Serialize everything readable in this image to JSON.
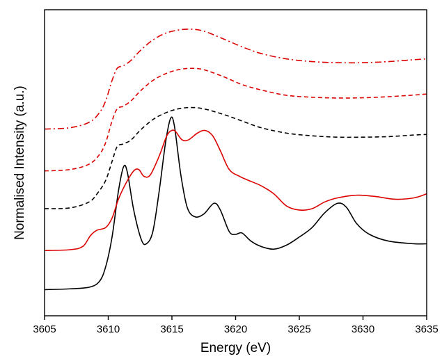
{
  "chart_data": {
    "type": "line",
    "xlabel": "Energy (eV)",
    "ylabel": "Normalised Intensity (a.u.)",
    "xlim": [
      3605,
      3635
    ],
    "xticks": [
      "3605",
      "3610",
      "3615",
      "3620",
      "3625",
      "3630",
      "3635"
    ],
    "yticks_labeled": false,
    "grid": false,
    "legend": "none",
    "series": [
      {
        "color": "#000000",
        "style": "solid",
        "points": [
          [
            3605,
            0.035
          ],
          [
            3607,
            0.038
          ],
          [
            3608.5,
            0.044
          ],
          [
            3609.3,
            0.065
          ],
          [
            3609.8,
            0.12
          ],
          [
            3610.3,
            0.23
          ],
          [
            3610.8,
            0.4
          ],
          [
            3611.2,
            0.49
          ],
          [
            3611.5,
            0.47
          ],
          [
            3612.0,
            0.33
          ],
          [
            3612.6,
            0.22
          ],
          [
            3613.0,
            0.205
          ],
          [
            3613.5,
            0.25
          ],
          [
            3614.0,
            0.4
          ],
          [
            3614.5,
            0.58
          ],
          [
            3614.9,
            0.67
          ],
          [
            3615.2,
            0.64
          ],
          [
            3615.7,
            0.46
          ],
          [
            3616.2,
            0.34
          ],
          [
            3616.8,
            0.305
          ],
          [
            3617.5,
            0.315
          ],
          [
            3618.3,
            0.355
          ],
          [
            3618.8,
            0.33
          ],
          [
            3619.5,
            0.25
          ],
          [
            3620.0,
            0.24
          ],
          [
            3620.5,
            0.245
          ],
          [
            3621.2,
            0.215
          ],
          [
            3622.0,
            0.195
          ],
          [
            3623.0,
            0.185
          ],
          [
            3624.0,
            0.2
          ],
          [
            3625.0,
            0.23
          ],
          [
            3626.0,
            0.265
          ],
          [
            3627.0,
            0.32
          ],
          [
            3628.0,
            0.355
          ],
          [
            3628.7,
            0.34
          ],
          [
            3629.5,
            0.28
          ],
          [
            3630.5,
            0.24
          ],
          [
            3632.0,
            0.215
          ],
          [
            3634.0,
            0.205
          ],
          [
            3635,
            0.205
          ]
        ]
      },
      {
        "color": "#dd0000",
        "style": "solid",
        "points": [
          [
            3605,
            0.18
          ],
          [
            3607,
            0.183
          ],
          [
            3608.0,
            0.195
          ],
          [
            3608.6,
            0.235
          ],
          [
            3609.1,
            0.255
          ],
          [
            3609.8,
            0.265
          ],
          [
            3610.3,
            0.3
          ],
          [
            3610.8,
            0.37
          ],
          [
            3611.4,
            0.43
          ],
          [
            3612.0,
            0.475
          ],
          [
            3612.4,
            0.48
          ],
          [
            3612.8,
            0.455
          ],
          [
            3613.3,
            0.46
          ],
          [
            3614.0,
            0.53
          ],
          [
            3614.6,
            0.605
          ],
          [
            3615.0,
            0.625
          ],
          [
            3615.3,
            0.62
          ],
          [
            3615.8,
            0.59
          ],
          [
            3616.3,
            0.59
          ],
          [
            3617.0,
            0.615
          ],
          [
            3617.6,
            0.625
          ],
          [
            3618.2,
            0.605
          ],
          [
            3618.8,
            0.55
          ],
          [
            3619.5,
            0.48
          ],
          [
            3620.3,
            0.455
          ],
          [
            3621.0,
            0.44
          ],
          [
            3622.0,
            0.42
          ],
          [
            3623.0,
            0.39
          ],
          [
            3624.0,
            0.345
          ],
          [
            3625.0,
            0.33
          ],
          [
            3626.0,
            0.335
          ],
          [
            3627.0,
            0.36
          ],
          [
            3628.0,
            0.375
          ],
          [
            3629.5,
            0.385
          ],
          [
            3631.0,
            0.38
          ],
          [
            3632.5,
            0.37
          ],
          [
            3634.0,
            0.375
          ],
          [
            3635,
            0.39
          ]
        ]
      },
      {
        "color": "#000000",
        "style": "dashed",
        "points": [
          [
            3605,
            0.335
          ],
          [
            3607,
            0.338
          ],
          [
            3608.5,
            0.36
          ],
          [
            3609.2,
            0.395
          ],
          [
            3609.8,
            0.44
          ],
          [
            3610.3,
            0.51
          ],
          [
            3610.7,
            0.565
          ],
          [
            3611.2,
            0.575
          ],
          [
            3611.8,
            0.59
          ],
          [
            3612.5,
            0.625
          ],
          [
            3613.5,
            0.665
          ],
          [
            3614.5,
            0.69
          ],
          [
            3615.5,
            0.705
          ],
          [
            3616.5,
            0.71
          ],
          [
            3617.5,
            0.705
          ],
          [
            3619.0,
            0.685
          ],
          [
            3620.5,
            0.66
          ],
          [
            3622.0,
            0.635
          ],
          [
            3624.0,
            0.615
          ],
          [
            3626.0,
            0.605
          ],
          [
            3628.0,
            0.6
          ],
          [
            3630.0,
            0.6
          ],
          [
            3632.0,
            0.602
          ],
          [
            3634.0,
            0.608
          ],
          [
            3635,
            0.61
          ]
        ]
      },
      {
        "color": "#dd0000",
        "style": "dashed",
        "points": [
          [
            3605,
            0.475
          ],
          [
            3607,
            0.48
          ],
          [
            3608.5,
            0.5
          ],
          [
            3609.3,
            0.535
          ],
          [
            3609.8,
            0.58
          ],
          [
            3610.3,
            0.66
          ],
          [
            3610.7,
            0.705
          ],
          [
            3611.2,
            0.715
          ],
          [
            3611.8,
            0.735
          ],
          [
            3612.5,
            0.77
          ],
          [
            3613.5,
            0.81
          ],
          [
            3614.5,
            0.835
          ],
          [
            3615.5,
            0.85
          ],
          [
            3616.5,
            0.855
          ],
          [
            3617.5,
            0.85
          ],
          [
            3619.0,
            0.825
          ],
          [
            3620.5,
            0.795
          ],
          [
            3622.0,
            0.775
          ],
          [
            3624.0,
            0.755
          ],
          [
            3626.0,
            0.748
          ],
          [
            3628.0,
            0.745
          ],
          [
            3630.0,
            0.746
          ],
          [
            3632.0,
            0.75
          ],
          [
            3634.0,
            0.756
          ],
          [
            3635,
            0.76
          ]
        ]
      },
      {
        "color": "#dd0000",
        "style": "dashdot",
        "points": [
          [
            3605,
            0.63
          ],
          [
            3607,
            0.635
          ],
          [
            3608.5,
            0.655
          ],
          [
            3609.3,
            0.69
          ],
          [
            3609.8,
            0.735
          ],
          [
            3610.3,
            0.81
          ],
          [
            3610.7,
            0.855
          ],
          [
            3611.2,
            0.865
          ],
          [
            3611.8,
            0.885
          ],
          [
            3612.5,
            0.92
          ],
          [
            3613.5,
            0.96
          ],
          [
            3614.5,
            0.985
          ],
          [
            3615.5,
            0.997
          ],
          [
            3616.5,
            1.0
          ],
          [
            3617.5,
            0.993
          ],
          [
            3619.0,
            0.965
          ],
          [
            3620.5,
            0.935
          ],
          [
            3622.0,
            0.91
          ],
          [
            3624.0,
            0.89
          ],
          [
            3626.0,
            0.88
          ],
          [
            3628.0,
            0.876
          ],
          [
            3630.0,
            0.876
          ],
          [
            3632.0,
            0.88
          ],
          [
            3634.0,
            0.887
          ],
          [
            3635,
            0.89
          ]
        ]
      }
    ]
  }
}
